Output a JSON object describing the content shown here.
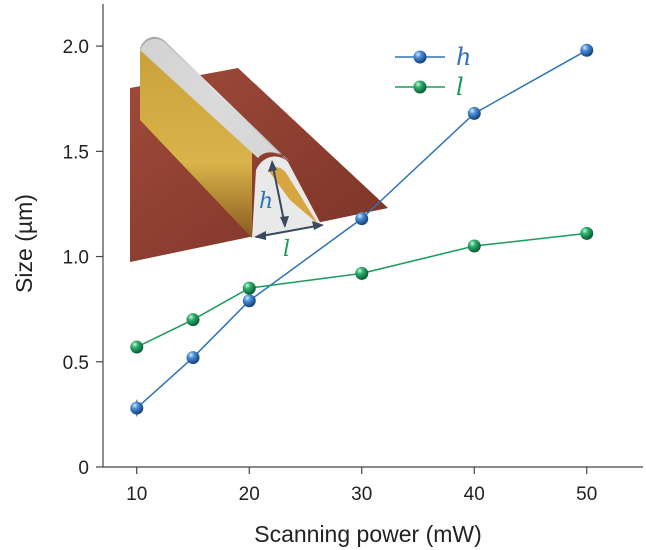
{
  "chart_data": {
    "type": "line",
    "title": "",
    "xlabel": "Scanning power (mW)",
    "ylabel": "Size (µm)",
    "xlim": [
      7,
      55
    ],
    "ylim": [
      0,
      2.2
    ],
    "x_ticks": [
      10,
      20,
      30,
      40,
      50
    ],
    "x_tick_labels": [
      "10",
      "20",
      "30",
      "40",
      "50"
    ],
    "y_ticks": [
      0,
      0.5,
      1.0,
      1.5,
      2.0
    ],
    "y_tick_labels": [
      "0",
      "0.5",
      "1.0",
      "1.5",
      "2.0"
    ],
    "grid": false,
    "legend_position": "top-right",
    "series": [
      {
        "name": "h",
        "color": "#2e74b5",
        "x": [
          10,
          15,
          20,
          30,
          40,
          50
        ],
        "y": [
          0.28,
          0.52,
          0.79,
          1.18,
          1.68,
          1.98
        ],
        "error": [
          0.04,
          0.02,
          0.02,
          0.02,
          0.02,
          0.03
        ]
      },
      {
        "name": "l",
        "color": "#1a9b5c",
        "x": [
          10,
          15,
          20,
          30,
          40,
          50
        ],
        "y": [
          0.57,
          0.7,
          0.85,
          0.92,
          1.05,
          1.11
        ],
        "error": [
          0.03,
          0.02,
          0.02,
          0.03,
          0.02,
          0.02
        ]
      }
    ],
    "inset": {
      "description_labels": [
        "h",
        "l"
      ],
      "h_color": "#2e74b5",
      "l_color": "#1a9b5c"
    }
  }
}
